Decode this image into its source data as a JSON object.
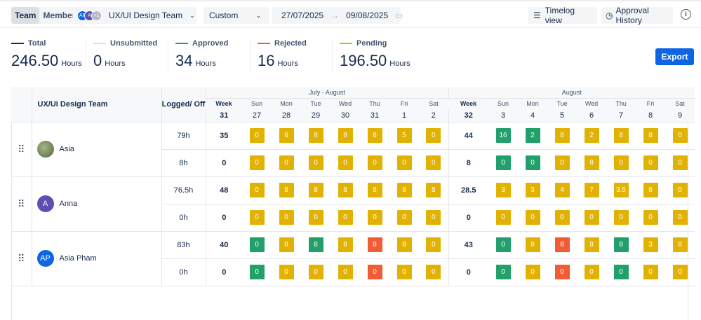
{
  "topbar": {
    "tabs": [
      "Team",
      "Member"
    ],
    "active_tab": "Team",
    "avatars": [
      {
        "initials": "AP",
        "color": "#0c66e4"
      },
      {
        "initials": "A",
        "color": "#5e4db2"
      },
      {
        "initials": "+1",
        "color": "#b3b9c4"
      }
    ],
    "team": "UX/UI Design Team",
    "range": "Custom",
    "start_date": "27/07/2025",
    "end_date": "09/08/2025",
    "timelog_view": "Timelog view",
    "approval_history": "Approval History"
  },
  "summary": [
    {
      "label": "Total",
      "value": "246.50",
      "unit": "Hours",
      "color": "#172b4d"
    },
    {
      "label": "Unsubmitted",
      "value": "0",
      "unit": "Hours",
      "color": "#dcdfe4"
    },
    {
      "label": "Approved",
      "value": "34",
      "unit": "Hours",
      "color": "#22a06b"
    },
    {
      "label": "Rejected",
      "value": "16",
      "unit": "Hours",
      "color": "#f15b35"
    },
    {
      "label": "Pending",
      "value": "196.50",
      "unit": "Hours",
      "color": "#e2b203"
    }
  ],
  "export_label": "Export",
  "table": {
    "team_header": "UX/UI Design Team",
    "logged_header": "Logged/ Off",
    "week_label": "Week",
    "weeks": [
      {
        "month": "July - August",
        "number": "31",
        "days": [
          [
            "Sun",
            "27"
          ],
          [
            "Mon",
            "28"
          ],
          [
            "Tue",
            "29"
          ],
          [
            "Wed",
            "30"
          ],
          [
            "Thu",
            "31"
          ],
          [
            "Fri",
            "1"
          ],
          [
            "Sat",
            "2"
          ]
        ]
      },
      {
        "month": "August",
        "number": "32",
        "days": [
          [
            "Sun",
            "3"
          ],
          [
            "Mon",
            "4"
          ],
          [
            "Tue",
            "5"
          ],
          [
            "Wed",
            "6"
          ],
          [
            "Thu",
            "7"
          ],
          [
            "Fri",
            "8"
          ],
          [
            "Sat",
            "9"
          ]
        ]
      }
    ],
    "status_colors": {
      "P": "#e2b203",
      "A": "#22a06b",
      "R": "#f15b35"
    },
    "members": [
      {
        "name": "Asia",
        "initials": "",
        "avatar_color": "#6b8e4e",
        "rows": [
          {
            "logged": "79h",
            "w1": "35",
            "c1": [
              [
                "0",
                "P"
              ],
              [
                "6",
                "P"
              ],
              [
                "8",
                "P"
              ],
              [
                "8",
                "P"
              ],
              [
                "8",
                "P"
              ],
              [
                "5",
                "P"
              ],
              [
                "0",
                "P"
              ]
            ],
            "w2": "44",
            "c2": [
              [
                "16",
                "A"
              ],
              [
                "2",
                "A"
              ],
              [
                "8",
                "P"
              ],
              [
                "2",
                "P"
              ],
              [
                "8",
                "P"
              ],
              [
                "8",
                "P"
              ],
              [
                "0",
                "P"
              ]
            ]
          },
          {
            "logged": "8h",
            "w1": "0",
            "c1": [
              [
                "0",
                "P"
              ],
              [
                "0",
                "P"
              ],
              [
                "0",
                "P"
              ],
              [
                "0",
                "P"
              ],
              [
                "0",
                "P"
              ],
              [
                "0",
                "P"
              ],
              [
                "0",
                "P"
              ]
            ],
            "w2": "8",
            "c2": [
              [
                "0",
                "A"
              ],
              [
                "0",
                "A"
              ],
              [
                "0",
                "P"
              ],
              [
                "8",
                "P"
              ],
              [
                "0",
                "P"
              ],
              [
                "0",
                "P"
              ],
              [
                "0",
                "P"
              ]
            ]
          }
        ]
      },
      {
        "name": "Anna",
        "initials": "A",
        "avatar_color": "#5e4db2",
        "rows": [
          {
            "logged": "76.5h",
            "w1": "48",
            "c1": [
              [
                "0",
                "P"
              ],
              [
                "8",
                "P"
              ],
              [
                "8",
                "P"
              ],
              [
                "8",
                "P"
              ],
              [
                "8",
                "P"
              ],
              [
                "8",
                "P"
              ],
              [
                "8",
                "P"
              ]
            ],
            "w2": "28.5",
            "c2": [
              [
                "3",
                "P"
              ],
              [
                "3",
                "P"
              ],
              [
                "4",
                "P"
              ],
              [
                "7",
                "P"
              ],
              [
                "3.5",
                "P"
              ],
              [
                "8",
                "P"
              ],
              [
                "0",
                "P"
              ]
            ]
          },
          {
            "logged": "0h",
            "w1": "0",
            "c1": [
              [
                "0",
                "P"
              ],
              [
                "0",
                "P"
              ],
              [
                "0",
                "P"
              ],
              [
                "0",
                "P"
              ],
              [
                "0",
                "P"
              ],
              [
                "0",
                "P"
              ],
              [
                "0",
                "P"
              ]
            ],
            "w2": "0",
            "c2": [
              [
                "0",
                "P"
              ],
              [
                "0",
                "P"
              ],
              [
                "0",
                "P"
              ],
              [
                "0",
                "P"
              ],
              [
                "0",
                "P"
              ],
              [
                "0",
                "P"
              ],
              [
                "0",
                "P"
              ]
            ]
          }
        ]
      },
      {
        "name": "Asia Pham",
        "initials": "AP",
        "avatar_color": "#0c66e4",
        "rows": [
          {
            "logged": "83h",
            "w1": "40",
            "c1": [
              [
                "0",
                "A"
              ],
              [
                "8",
                "P"
              ],
              [
                "8",
                "A"
              ],
              [
                "8",
                "P"
              ],
              [
                "8",
                "R"
              ],
              [
                "8",
                "P"
              ],
              [
                "0",
                "P"
              ]
            ],
            "w2": "43",
            "c2": [
              [
                "0",
                "A"
              ],
              [
                "8",
                "P"
              ],
              [
                "8",
                "R"
              ],
              [
                "8",
                "P"
              ],
              [
                "8",
                "A"
              ],
              [
                "3",
                "P"
              ],
              [
                "8",
                "P"
              ]
            ]
          },
          {
            "logged": "0h",
            "w1": "0",
            "c1": [
              [
                "0",
                "A"
              ],
              [
                "0",
                "P"
              ],
              [
                "0",
                "P"
              ],
              [
                "0",
                "P"
              ],
              [
                "0",
                "R"
              ],
              [
                "0",
                "P"
              ],
              [
                "0",
                "P"
              ]
            ],
            "w2": "0",
            "c2": [
              [
                "0",
                "A"
              ],
              [
                "0",
                "P"
              ],
              [
                "0",
                "R"
              ],
              [
                "0",
                "P"
              ],
              [
                "0",
                "A"
              ],
              [
                "0",
                "P"
              ],
              [
                "0",
                "P"
              ]
            ]
          }
        ]
      }
    ]
  }
}
